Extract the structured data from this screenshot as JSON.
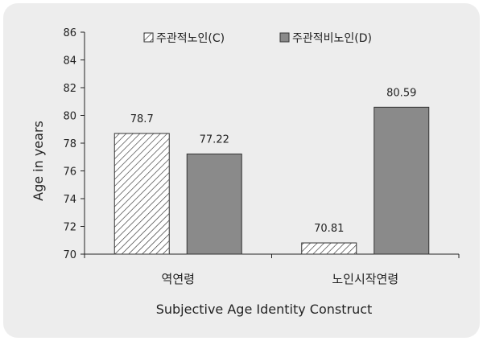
{
  "chart_data": {
    "type": "bar",
    "categories": [
      "역연령",
      "노인시작연령"
    ],
    "series": [
      {
        "name": "주관적노인(C)",
        "values": [
          78.7,
          70.81
        ],
        "pattern": "hatch",
        "color": "#ffffff"
      },
      {
        "name": "주관적비노인(D)",
        "values": [
          77.22,
          80.59
        ],
        "pattern": "solid",
        "color": "#8a8a8a"
      }
    ],
    "value_labels": [
      [
        "78.7",
        "70.81"
      ],
      [
        "77.22",
        "80.59"
      ]
    ],
    "xlabel": "Subjective Age Identity Construct",
    "ylabel": "Age in years",
    "ylim": [
      70,
      86
    ],
    "yticks": [
      "70",
      "72",
      "74",
      "76",
      "78",
      "80",
      "82",
      "84",
      "86"
    ],
    "grid": false,
    "legend_position": "top"
  }
}
